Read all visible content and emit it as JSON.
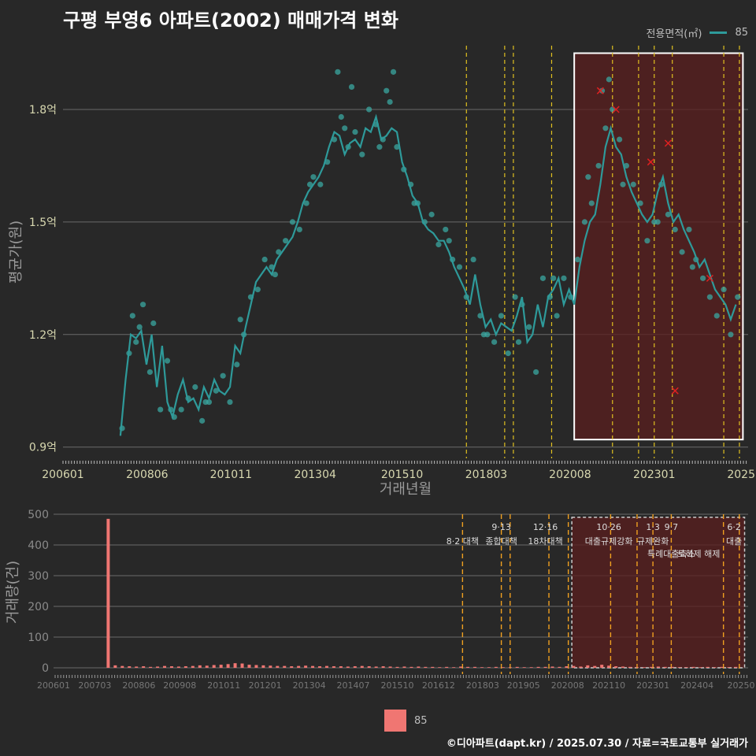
{
  "page": {
    "title": "구평 부영6 아파트(2002) 매매가격 변화",
    "footer": "©디아파트(dapt.kr) / 2025.07.30 / 자료=국토교통부 실거래가",
    "legend_top_title": "전용면적(㎡)",
    "legend_top_item": "85",
    "legend_bottom_item": "85"
  },
  "colors": {
    "background": "#282828",
    "line": "#2e9a9a",
    "points": "#3aa7a0",
    "bars": "#f07672",
    "highlight_fill": "#5a1e1e",
    "policy_line": "#e0c020",
    "marker": "#e02020"
  },
  "chart_data": [
    {
      "type": "line",
      "title": "구평 부영6 아파트(2002) 매매가격 변화",
      "xlabel": "거래년월",
      "ylabel": "평균가(원)",
      "ylim": [
        0.87,
        1.97
      ],
      "xlim": [
        2006.0,
        2025.7
      ],
      "yticks": [
        0.9,
        1.2,
        1.5,
        1.8
      ],
      "ytick_labels": [
        "0.9억",
        "1.2억",
        "1.5억",
        "1.8억"
      ],
      "xtick_labels": [
        "200601",
        "200806",
        "201011",
        "201304",
        "201510",
        "201803",
        "202008",
        "202301",
        "2025"
      ],
      "xtick_values": [
        2006.0,
        2008.42,
        2010.83,
        2013.25,
        2015.75,
        2018.17,
        2020.58,
        2023.0,
        2025.5
      ],
      "series": [
        {
          "name": "85",
          "x": [
            2007.65,
            2007.8,
            2007.95,
            2008.1,
            2008.25,
            2008.4,
            2008.55,
            2008.7,
            2008.85,
            2009.0,
            2009.15,
            2009.3,
            2009.45,
            2009.6,
            2009.75,
            2009.9,
            2010.05,
            2010.2,
            2010.35,
            2010.5,
            2010.65,
            2010.8,
            2010.95,
            2011.1,
            2011.25,
            2011.4,
            2011.55,
            2011.7,
            2011.85,
            2012.0,
            2012.15,
            2012.3,
            2012.45,
            2012.6,
            2012.75,
            2012.9,
            2013.05,
            2013.2,
            2013.35,
            2013.5,
            2013.65,
            2013.8,
            2013.95,
            2014.1,
            2014.25,
            2014.4,
            2014.55,
            2014.7,
            2014.85,
            2015.0,
            2015.15,
            2015.3,
            2015.45,
            2015.6,
            2015.75,
            2015.9,
            2016.05,
            2016.2,
            2016.35,
            2016.5,
            2016.65,
            2016.8,
            2016.95,
            2017.1,
            2017.25,
            2017.4,
            2017.55,
            2017.7,
            2017.85,
            2018.0,
            2018.15,
            2018.3,
            2018.45,
            2018.6,
            2018.75,
            2018.9,
            2019.05,
            2019.2,
            2019.35,
            2019.5,
            2019.65,
            2019.8,
            2019.95,
            2020.1,
            2020.25,
            2020.4,
            2020.55,
            2020.7,
            2020.85,
            2021.0,
            2021.15,
            2021.3,
            2021.45,
            2021.6,
            2021.75,
            2021.9,
            2022.05,
            2022.2,
            2022.35,
            2022.5,
            2022.65,
            2022.8,
            2022.95,
            2023.1,
            2023.25,
            2023.4,
            2023.55,
            2023.7,
            2023.85,
            2024.0,
            2024.15,
            2024.3,
            2024.45,
            2024.6,
            2024.75,
            2024.9,
            2025.05,
            2025.2,
            2025.35
          ],
          "values": [
            0.93,
            1.08,
            1.2,
            1.19,
            1.21,
            1.12,
            1.2,
            1.06,
            1.17,
            1.02,
            0.98,
            1.04,
            1.08,
            1.02,
            1.03,
            1.0,
            1.06,
            1.03,
            1.08,
            1.05,
            1.04,
            1.06,
            1.17,
            1.15,
            1.22,
            1.28,
            1.34,
            1.36,
            1.38,
            1.36,
            1.4,
            1.42,
            1.44,
            1.46,
            1.5,
            1.55,
            1.58,
            1.6,
            1.62,
            1.65,
            1.7,
            1.74,
            1.73,
            1.68,
            1.71,
            1.72,
            1.7,
            1.75,
            1.74,
            1.78,
            1.72,
            1.73,
            1.75,
            1.74,
            1.66,
            1.62,
            1.57,
            1.55,
            1.5,
            1.48,
            1.47,
            1.45,
            1.45,
            1.42,
            1.38,
            1.35,
            1.32,
            1.28,
            1.36,
            1.28,
            1.22,
            1.24,
            1.2,
            1.23,
            1.22,
            1.21,
            1.25,
            1.3,
            1.18,
            1.2,
            1.28,
            1.22,
            1.3,
            1.32,
            1.35,
            1.28,
            1.32,
            1.28,
            1.38,
            1.45,
            1.5,
            1.52,
            1.6,
            1.7,
            1.75,
            1.7,
            1.68,
            1.62,
            1.58,
            1.55,
            1.52,
            1.5,
            1.52,
            1.58,
            1.62,
            1.55,
            1.5,
            1.52,
            1.48,
            1.45,
            1.42,
            1.38,
            1.4,
            1.36,
            1.32,
            1.3,
            1.28,
            1.24,
            1.28
          ]
        }
      ],
      "scatter_x": [
        2007.7,
        2007.9,
        2008.0,
        2008.2,
        2008.3,
        2008.5,
        2008.6,
        2008.8,
        2009.0,
        2009.2,
        2009.4,
        2009.6,
        2009.8,
        2010.0,
        2010.2,
        2010.4,
        2010.6,
        2010.8,
        2011.0,
        2011.2,
        2011.4,
        2011.6,
        2011.8,
        2012.0,
        2012.2,
        2012.4,
        2012.6,
        2012.8,
        2013.0,
        2013.2,
        2013.4,
        2013.6,
        2013.8,
        2014.0,
        2014.2,
        2014.4,
        2014.6,
        2014.8,
        2015.0,
        2015.2,
        2015.4,
        2015.6,
        2015.8,
        2016.0,
        2016.2,
        2016.4,
        2016.6,
        2016.8,
        2017.0,
        2017.2,
        2017.4,
        2017.6,
        2017.8,
        2018.0,
        2018.2,
        2018.4,
        2018.6,
        2018.8,
        2019.0,
        2019.2,
        2019.4,
        2019.6,
        2019.8,
        2020.0,
        2020.2,
        2020.4,
        2020.6,
        2020.8,
        2021.0,
        2021.2,
        2021.4,
        2021.6,
        2021.8,
        2022.0,
        2022.2,
        2022.4,
        2022.6,
        2022.8,
        2023.0,
        2023.2,
        2023.4,
        2023.6,
        2023.8,
        2024.0,
        2024.2,
        2024.4,
        2024.6,
        2024.8,
        2025.0,
        2025.2,
        2025.4,
        2008.1,
        2009.1,
        2010.1,
        2011.1,
        2012.1,
        2013.1,
        2014.1,
        2015.1,
        2016.1,
        2017.1,
        2018.1,
        2019.1,
        2020.1,
        2021.1,
        2022.1,
        2023.1,
        2024.1,
        2013.9,
        2014.3,
        2015.3,
        2015.5,
        2021.5,
        2021.7
      ],
      "scatter_values": [
        0.95,
        1.15,
        1.25,
        1.22,
        1.28,
        1.1,
        1.23,
        1.0,
        1.13,
        0.98,
        1.0,
        1.03,
        1.06,
        0.97,
        1.02,
        1.05,
        1.09,
        1.02,
        1.12,
        1.2,
        1.3,
        1.32,
        1.4,
        1.38,
        1.42,
        1.45,
        1.5,
        1.48,
        1.55,
        1.62,
        1.6,
        1.66,
        1.72,
        1.78,
        1.7,
        1.74,
        1.68,
        1.8,
        1.76,
        1.72,
        1.82,
        1.7,
        1.64,
        1.6,
        1.55,
        1.5,
        1.52,
        1.44,
        1.48,
        1.4,
        1.38,
        1.3,
        1.4,
        1.25,
        1.2,
        1.18,
        1.25,
        1.15,
        1.3,
        1.28,
        1.22,
        1.1,
        1.35,
        1.3,
        1.25,
        1.35,
        1.3,
        1.4,
        1.5,
        1.55,
        1.65,
        1.75,
        1.8,
        1.72,
        1.65,
        1.6,
        1.55,
        1.45,
        1.5,
        1.6,
        1.52,
        1.48,
        1.42,
        1.48,
        1.4,
        1.35,
        1.3,
        1.25,
        1.32,
        1.2,
        1.3,
        1.18,
        1.0,
        1.02,
        1.24,
        1.36,
        1.6,
        1.75,
        1.7,
        1.55,
        1.45,
        1.2,
        1.18,
        1.35,
        1.62,
        1.6,
        1.5,
        1.38,
        1.9,
        1.86,
        1.85,
        1.9,
        1.85,
        1.88
      ],
      "markers_x": [
        2021.45,
        2021.9,
        2022.9,
        2023.4,
        2023.6,
        2024.6
      ],
      "markers_values": [
        1.85,
        1.8,
        1.66,
        1.71,
        1.05,
        1.35
      ],
      "policy_lines_x": [
        2017.6,
        2018.7,
        2018.95,
        2020.05,
        2021.8,
        2022.55,
        2023.0,
        2023.52,
        2025.0,
        2025.45
      ],
      "highlight_x": [
        2020.7,
        2025.55
      ],
      "highlight_y": [
        0.92,
        1.95
      ]
    },
    {
      "type": "bar",
      "xlabel": "",
      "ylabel": "거래량(건)",
      "ylim": [
        0,
        500
      ],
      "xlim": [
        2006.0,
        2025.7
      ],
      "yticks": [
        0,
        100,
        200,
        300,
        400,
        500
      ],
      "ytick_labels": [
        "0",
        "100",
        "200",
        "300",
        "400",
        "500"
      ],
      "xtick_labels": [
        "200601",
        "200703",
        "200806",
        "200908",
        "201011",
        "201201",
        "201304",
        "201407",
        "201510",
        "201612",
        "201803",
        "201905",
        "202008",
        "202110",
        "202301",
        "202404",
        "20250"
      ],
      "xtick_values": [
        2006.0,
        2007.17,
        2008.42,
        2009.58,
        2010.83,
        2012.0,
        2013.25,
        2014.5,
        2015.75,
        2016.92,
        2018.17,
        2019.33,
        2020.58,
        2021.75,
        2023.0,
        2024.25,
        2025.5
      ],
      "series": [
        {
          "name": "85",
          "x": [
            2007.55,
            2007.75,
            2007.95,
            2008.15,
            2008.35,
            2008.55,
            2008.75,
            2008.95,
            2009.15,
            2009.35,
            2009.55,
            2009.75,
            2009.95,
            2010.15,
            2010.35,
            2010.55,
            2010.75,
            2010.95,
            2011.15,
            2011.35,
            2011.55,
            2011.75,
            2011.95,
            2012.15,
            2012.35,
            2012.55,
            2012.75,
            2012.95,
            2013.15,
            2013.35,
            2013.55,
            2013.75,
            2013.95,
            2014.15,
            2014.35,
            2014.55,
            2014.75,
            2014.95,
            2015.15,
            2015.35,
            2015.55,
            2015.75,
            2015.95,
            2016.15,
            2016.35,
            2016.55,
            2016.75,
            2016.95,
            2017.15,
            2017.35,
            2017.55,
            2017.75,
            2017.95,
            2018.15,
            2018.35,
            2018.55,
            2018.75,
            2018.95,
            2019.15,
            2019.35,
            2019.55,
            2019.75,
            2019.95,
            2020.15,
            2020.35,
            2020.55,
            2020.75,
            2020.95,
            2021.15,
            2021.35,
            2021.55,
            2021.75,
            2021.95,
            2022.15,
            2022.35,
            2022.55,
            2022.75,
            2022.95,
            2023.15,
            2023.35,
            2023.55,
            2023.75,
            2023.95,
            2024.15,
            2024.35,
            2024.55,
            2024.75,
            2024.95,
            2025.15,
            2025.35
          ],
          "values": [
            485,
            8,
            6,
            5,
            4,
            5,
            3,
            4,
            6,
            5,
            4,
            5,
            6,
            8,
            7,
            9,
            10,
            12,
            15,
            14,
            10,
            9,
            8,
            7,
            6,
            6,
            5,
            6,
            7,
            6,
            5,
            6,
            5,
            5,
            4,
            5,
            6,
            5,
            4,
            5,
            4,
            3,
            4,
            3,
            4,
            3,
            3,
            2,
            3,
            2,
            4,
            3,
            3,
            2,
            2,
            3,
            2,
            2,
            3,
            2,
            2,
            3,
            3,
            4,
            3,
            5,
            6,
            4,
            8,
            6,
            10,
            7,
            5,
            4,
            3,
            2,
            2,
            3,
            4,
            3,
            3,
            2,
            2,
            3,
            2,
            3,
            2,
            3,
            2,
            3
          ]
        }
      ],
      "policy_lines_x": [
        2017.6,
        2018.7,
        2018.95,
        2020.05,
        2020.6,
        2021.8,
        2022.55,
        2023.0,
        2023.52,
        2025.0,
        2025.45
      ],
      "highlight_x": [
        2020.7,
        2025.6
      ],
      "annotations": [
        {
          "x": 2017.6,
          "date": "",
          "text": "8·2 대책"
        },
        {
          "x": 2018.7,
          "date": "9·13",
          "text": "종합대책"
        },
        {
          "x": 2019.95,
          "date": "12·16",
          "text": "18차대책"
        },
        {
          "x": 2021.75,
          "date": "10·26",
          "text": "대출규제강화"
        },
        {
          "x": 2023.0,
          "date": "1·3",
          "text": "규제완화"
        },
        {
          "x": 2023.52,
          "date": "9·7",
          "text": "특례대출축소"
        },
        {
          "x": 2024.3,
          "date": "",
          "text": "토허제 해제"
        },
        {
          "x": 2025.3,
          "date": "6·2",
          "text": "대출"
        }
      ]
    }
  ]
}
